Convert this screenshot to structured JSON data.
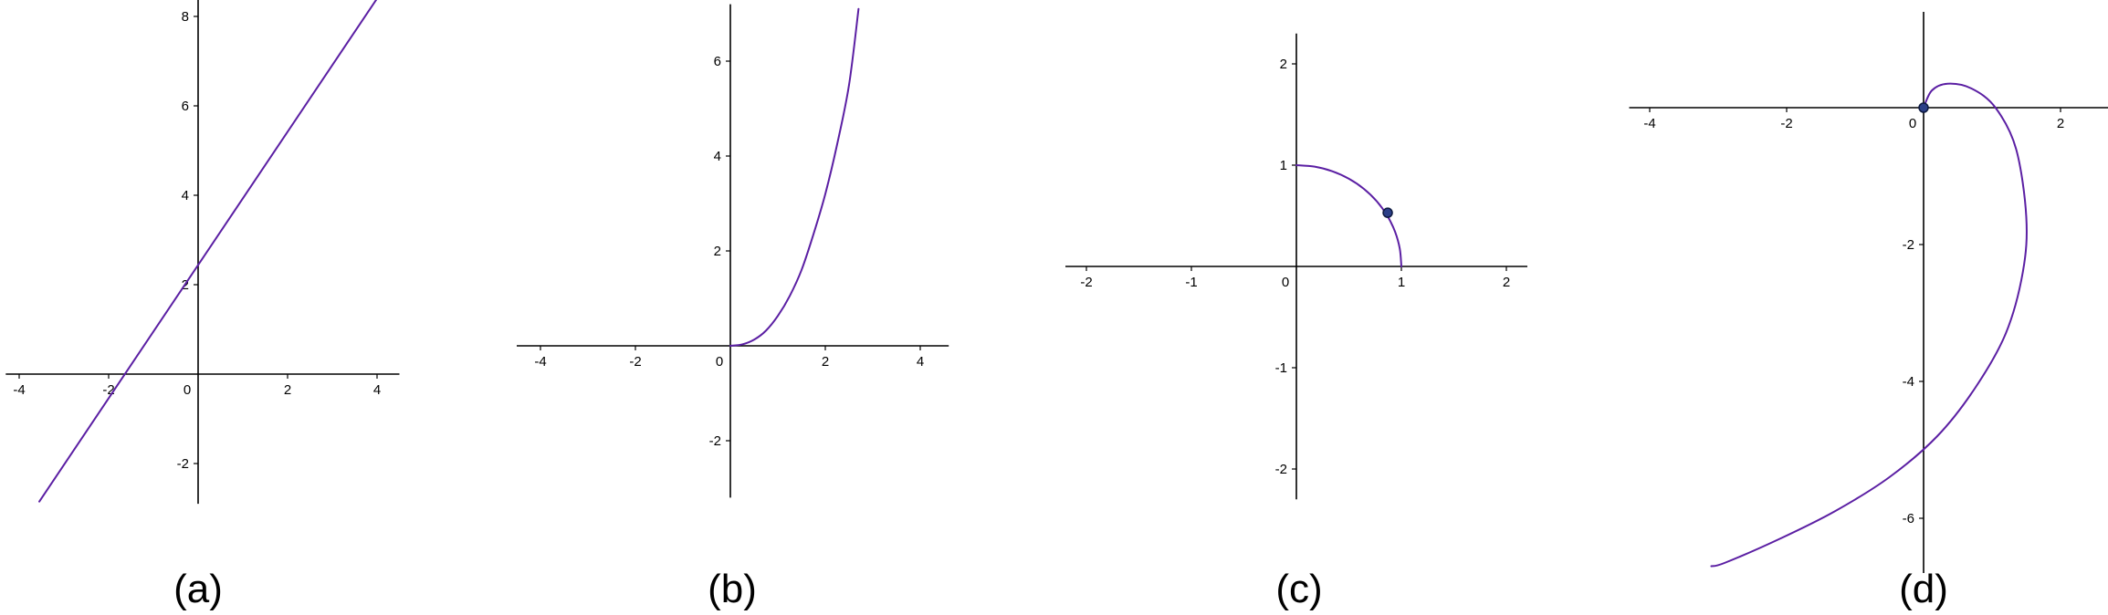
{
  "colors": {
    "curve": "#5b1fa3",
    "axis": "#000000",
    "point_fill": "#2b3f87",
    "point_stroke": "#0e1a40",
    "background": "#ffffff"
  },
  "chart_data": [
    {
      "id": "a",
      "type": "line",
      "caption": "(a)",
      "title": "",
      "xlabel": "",
      "ylabel": "",
      "xlim": [
        -4.3,
        4.5
      ],
      "ylim": [
        -2.9,
        8.4
      ],
      "grid": false,
      "xticks": [
        -4,
        -2,
        0,
        2,
        4
      ],
      "yticks": [
        -2,
        2,
        4,
        6,
        8
      ],
      "series": [
        {
          "x": [
            -3.55,
            4.0
          ],
          "y": [
            -2.85,
            8.4
          ]
        }
      ],
      "points": []
    },
    {
      "id": "b",
      "type": "line",
      "caption": "(b)",
      "title": "",
      "xlabel": "",
      "ylabel": "",
      "xlim": [
        -4.5,
        4.6
      ],
      "ylim": [
        -3.2,
        7.2
      ],
      "grid": false,
      "xticks": [
        -4,
        -2,
        0,
        2,
        4
      ],
      "yticks": [
        -2,
        2,
        4,
        6
      ],
      "series": [
        {
          "x": [
            0,
            0.25,
            0.5,
            0.75,
            1.0,
            1.25,
            1.5,
            1.75,
            2.0,
            2.25,
            2.5,
            2.7
          ],
          "y": [
            0,
            0.03,
            0.13,
            0.32,
            0.63,
            1.05,
            1.6,
            2.35,
            3.2,
            4.25,
            5.5,
            7.1
          ]
        }
      ],
      "points": []
    },
    {
      "id": "c",
      "type": "line",
      "caption": "(c)",
      "title": "",
      "xlabel": "",
      "ylabel": "",
      "xlim": [
        -2.2,
        2.2
      ],
      "ylim": [
        -2.3,
        2.3
      ],
      "grid": false,
      "xticks": [
        -2,
        -1,
        0,
        1,
        2
      ],
      "yticks": [
        -2,
        -1,
        1,
        2
      ],
      "series": [
        {
          "x": [
            0,
            0.174,
            0.342,
            0.5,
            0.643,
            0.766,
            0.866,
            0.94,
            0.985,
            1.0
          ],
          "y": [
            1.0,
            0.985,
            0.94,
            0.866,
            0.766,
            0.643,
            0.5,
            0.342,
            0.174,
            0
          ]
        }
      ],
      "points": [
        {
          "x": 0.87,
          "y": 0.53
        }
      ]
    },
    {
      "id": "d",
      "type": "line",
      "caption": "(d)",
      "title": "",
      "xlabel": "",
      "ylabel": "",
      "xlim": [
        -4.3,
        2.9
      ],
      "ylim": [
        -6.8,
        1.4
      ],
      "grid": false,
      "xticks": [
        -4,
        -2,
        0,
        2
      ],
      "yticks": [
        -2,
        -4,
        -6
      ],
      "series": [
        {
          "x": [
            0,
            0.12,
            0.35,
            0.7,
            1.05,
            1.35,
            1.5,
            1.45,
            1.2,
            0.75,
            0.2,
            -0.5,
            -1.3,
            -2.1,
            -2.9,
            -3.1
          ],
          "y": [
            0,
            0.25,
            0.35,
            0.28,
            0.0,
            -0.6,
            -1.6,
            -2.4,
            -3.3,
            -4.1,
            -4.8,
            -5.4,
            -5.9,
            -6.3,
            -6.65,
            -6.7
          ]
        }
      ],
      "points": [
        {
          "x": 0,
          "y": 0
        }
      ]
    }
  ]
}
